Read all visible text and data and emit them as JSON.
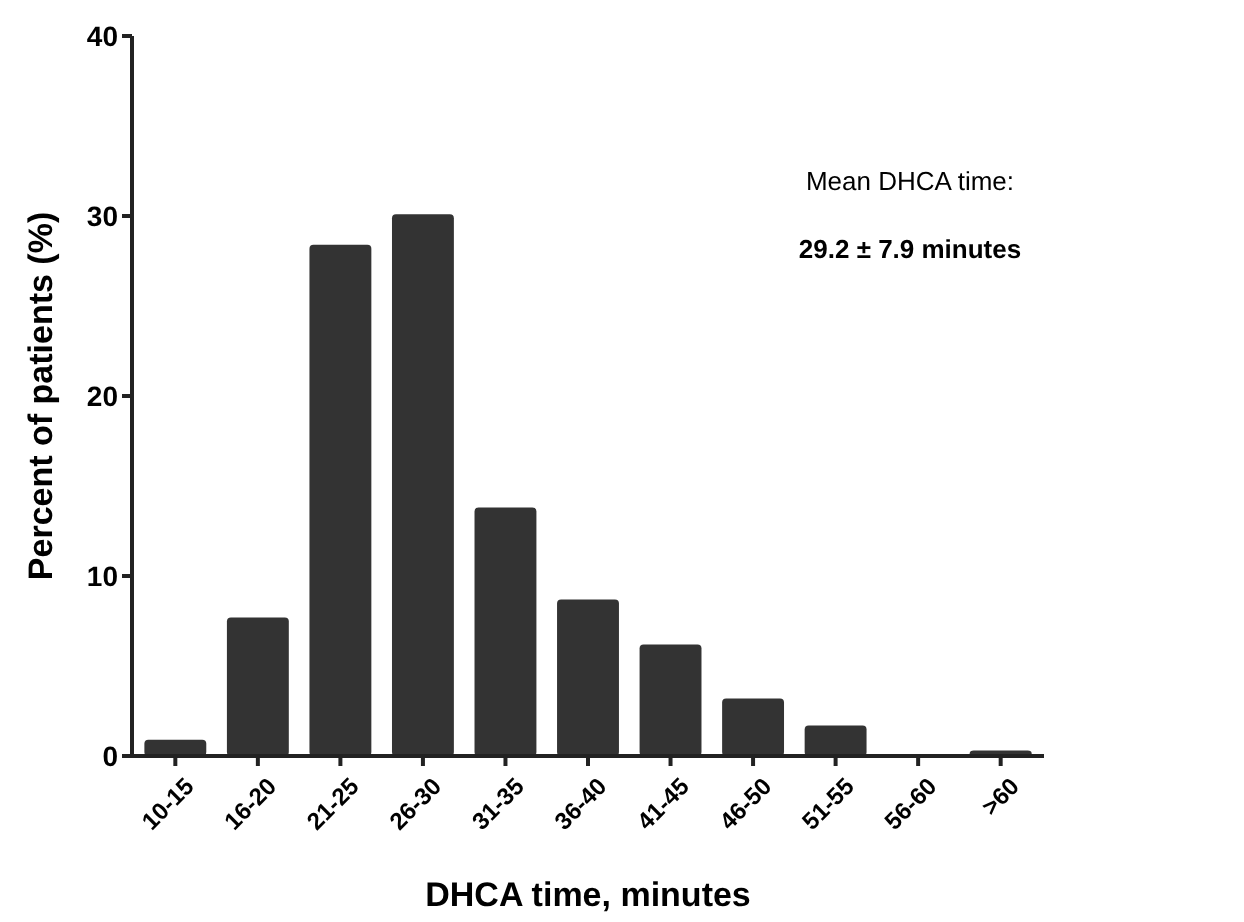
{
  "chart_data": {
    "type": "bar",
    "xlabel": "DHCA time, minutes",
    "ylabel": "Percent of patients (%)",
    "categories": [
      "10-15",
      "16-20",
      "21-25",
      "26-30",
      "31-35",
      "36-40",
      "41-45",
      "46-50",
      "51-55",
      "56-60",
      ">60"
    ],
    "values": [
      0.9,
      7.7,
      28.4,
      30.1,
      13.8,
      8.7,
      6.2,
      3.2,
      1.7,
      0,
      0.3
    ],
    "color": "#333333",
    "ylim": [
      0,
      40
    ],
    "yticks": [
      0,
      10,
      20,
      30,
      40
    ],
    "grid": false,
    "annotations": [
      "Mean DHCA time:",
      "29.2 ± 7.9 minutes"
    ]
  }
}
